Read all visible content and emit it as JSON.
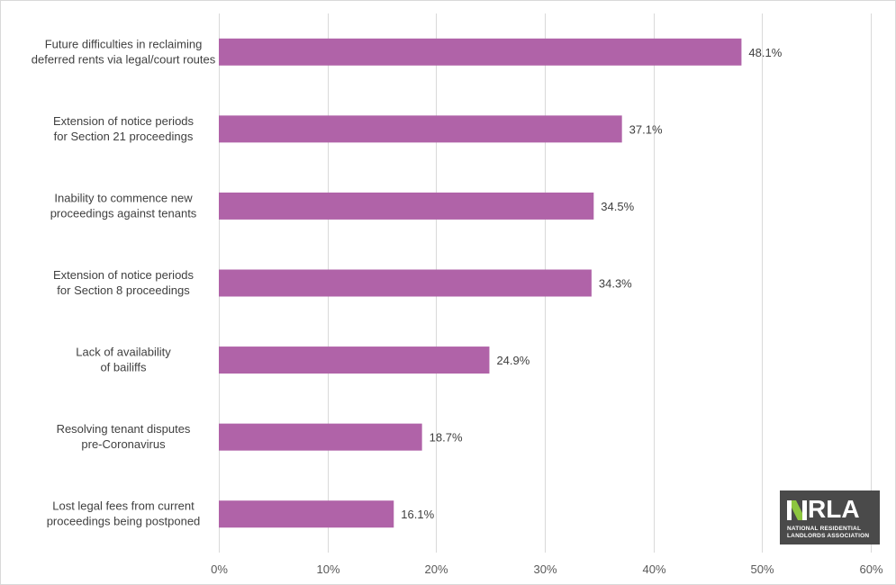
{
  "chart_data": {
    "type": "bar",
    "orientation": "horizontal",
    "categories": [
      [
        "Future difficulties in reclaiming",
        "deferred rents via legal/court routes"
      ],
      [
        "Extension of notice periods",
        "for Section 21 proceedings"
      ],
      [
        "Inability to commence new",
        "proceedings against tenants"
      ],
      [
        "Extension of notice periods",
        "for Section 8 proceedings"
      ],
      [
        "Lack of availability",
        "of bailiffs"
      ],
      [
        "Resolving tenant disputes",
        "pre-Coronavirus"
      ],
      [
        "Lost legal fees from current",
        "proceedings being postponed"
      ]
    ],
    "values": [
      48.1,
      37.1,
      34.5,
      34.3,
      24.9,
      18.7,
      16.1
    ],
    "data_labels": [
      "48.1%",
      "37.1%",
      "34.5%",
      "34.3%",
      "24.9%",
      "18.7%",
      "16.1%"
    ],
    "xticks": [
      "0%",
      "10%",
      "20%",
      "30%",
      "40%",
      "50%",
      "60%"
    ],
    "xlim": [
      0,
      60
    ],
    "grid": true,
    "bar_color": "#b063a8",
    "grid_color": "#d9d9d9",
    "title": "",
    "xlabel": "",
    "ylabel": ""
  },
  "logo": {
    "wordmark": "RLA",
    "lines": "NATIONAL RESIDENTIAL\nLANDLORDS ASSOCIATION",
    "background": "#4a4a4a",
    "accent": "#8dc63f"
  }
}
